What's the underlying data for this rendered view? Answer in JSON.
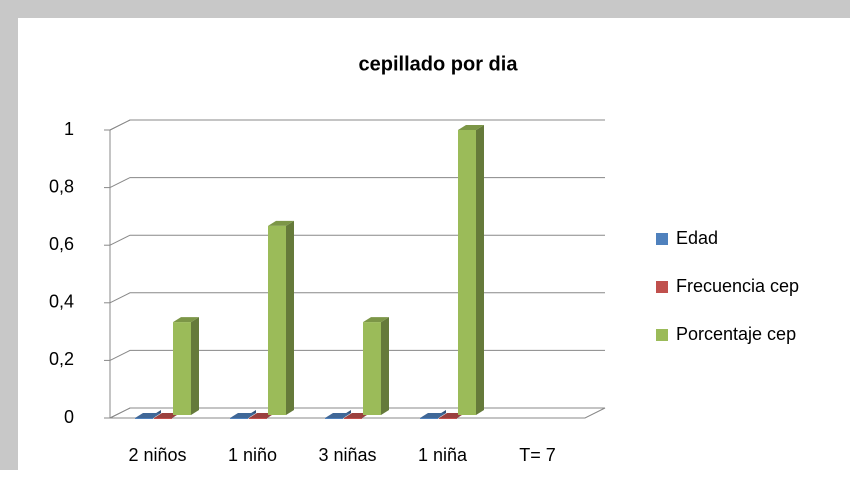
{
  "chart_data": {
    "type": "bar3d",
    "title": "cepillado por dia",
    "categories": [
      "2 niños",
      "1 niño",
      "3 niñas",
      "1 niña",
      "T= 7"
    ],
    "series": [
      {
        "name": "Edad",
        "color": "#4f81bd",
        "values": [
          0,
          0,
          0,
          0,
          null
        ]
      },
      {
        "name": "Frecuencia cep",
        "color": "#c0504d",
        "values": [
          0,
          0,
          0,
          0,
          null
        ]
      },
      {
        "name": "Porcentaje cep",
        "color": "#9bbb59",
        "values": [
          0.333,
          0.667,
          0.333,
          1,
          null
        ]
      }
    ],
    "ylim": [
      0,
      1
    ],
    "yticks": [
      0,
      {
        "value": 0.2,
        "label": "0,2"
      },
      {
        "value": 0.4,
        "label": "0,4"
      },
      {
        "value": 0.6,
        "label": "0,6"
      },
      {
        "value": 0.8,
        "label": "0,8"
      },
      1
    ],
    "grid": true,
    "legend": "right"
  }
}
